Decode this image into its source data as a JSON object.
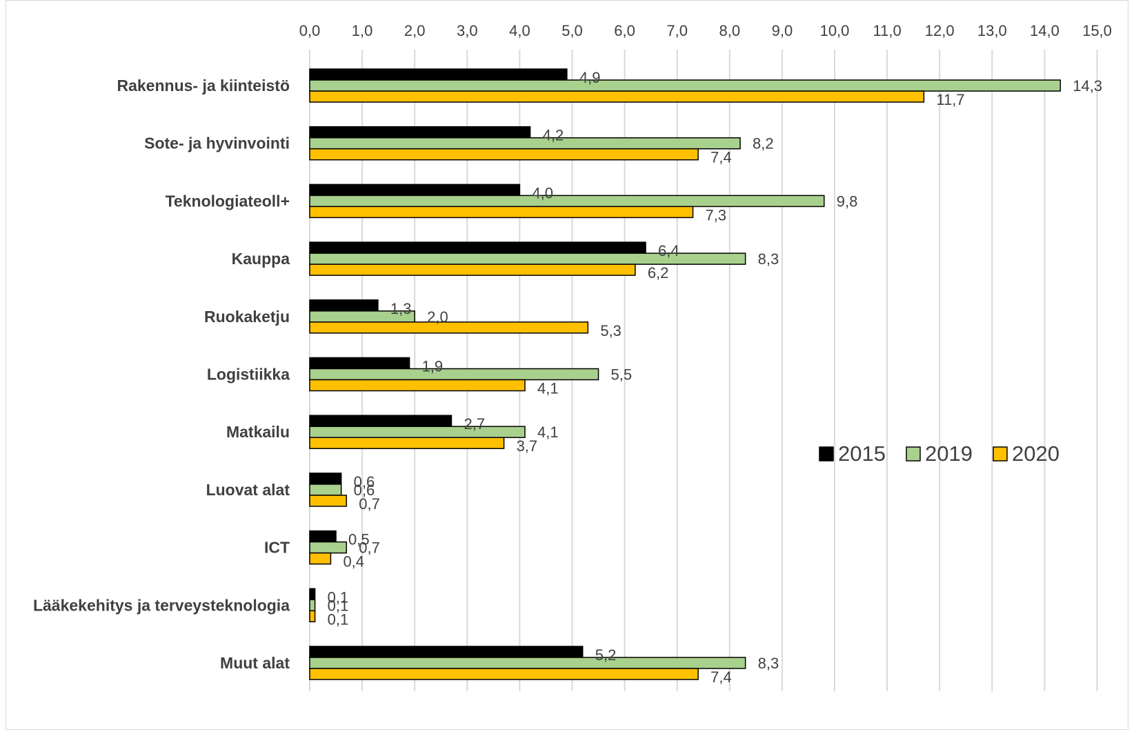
{
  "chart_data": {
    "type": "bar",
    "orientation": "horizontal",
    "title": "",
    "xlabel": "",
    "ylabel": "",
    "xlim": [
      0,
      15
    ],
    "x_ticks": [
      "0,0",
      "1,0",
      "2,0",
      "3,0",
      "4,0",
      "5,0",
      "6,0",
      "7,0",
      "8,0",
      "9,0",
      "10,0",
      "11,0",
      "12,0",
      "13,0",
      "14,0",
      "15,0"
    ],
    "x_axis_position": "top",
    "grid": true,
    "legend_position": "right",
    "categories": [
      "Rakennus- ja kiinteistö",
      "Sote- ja hyvinvointi",
      "Teknologiateoll+",
      "Kauppa",
      "Ruokaketju",
      "Logistiikka",
      "Matkailu",
      "Luovat alat",
      "ICT",
      "Lääkekehitys ja terveysteknologia",
      "Muut alat"
    ],
    "series": [
      {
        "name": "2015",
        "color": "#000000",
        "values": [
          4.9,
          4.2,
          4.0,
          6.4,
          1.3,
          1.9,
          2.7,
          0.6,
          0.5,
          0.1,
          5.2
        ],
        "labels": [
          "4,9",
          "4,2",
          "4,0",
          "6,4",
          "1,3",
          "1,9",
          "2,7",
          "0,6",
          "0,5",
          "0,1",
          "5,2"
        ]
      },
      {
        "name": "2019",
        "color": "#a9d18e",
        "values": [
          14.3,
          8.2,
          9.8,
          8.3,
          2.0,
          5.5,
          4.1,
          0.6,
          0.7,
          0.1,
          8.3
        ],
        "labels": [
          "14,3",
          "8,2",
          "9,8",
          "8,3",
          "2,0",
          "5,5",
          "4,1",
          "0,6",
          "0,7",
          "0,1",
          "8,3"
        ]
      },
      {
        "name": "2020",
        "color": "#ffc000",
        "values": [
          11.7,
          7.4,
          7.3,
          6.2,
          5.3,
          4.1,
          3.7,
          0.7,
          0.4,
          0.1,
          7.4
        ],
        "labels": [
          "11,7",
          "7,4",
          "7,3",
          "6,2",
          "5,3",
          "4,1",
          "3,7",
          "0,7",
          "0,4",
          "0,1",
          "7,4"
        ]
      }
    ]
  }
}
